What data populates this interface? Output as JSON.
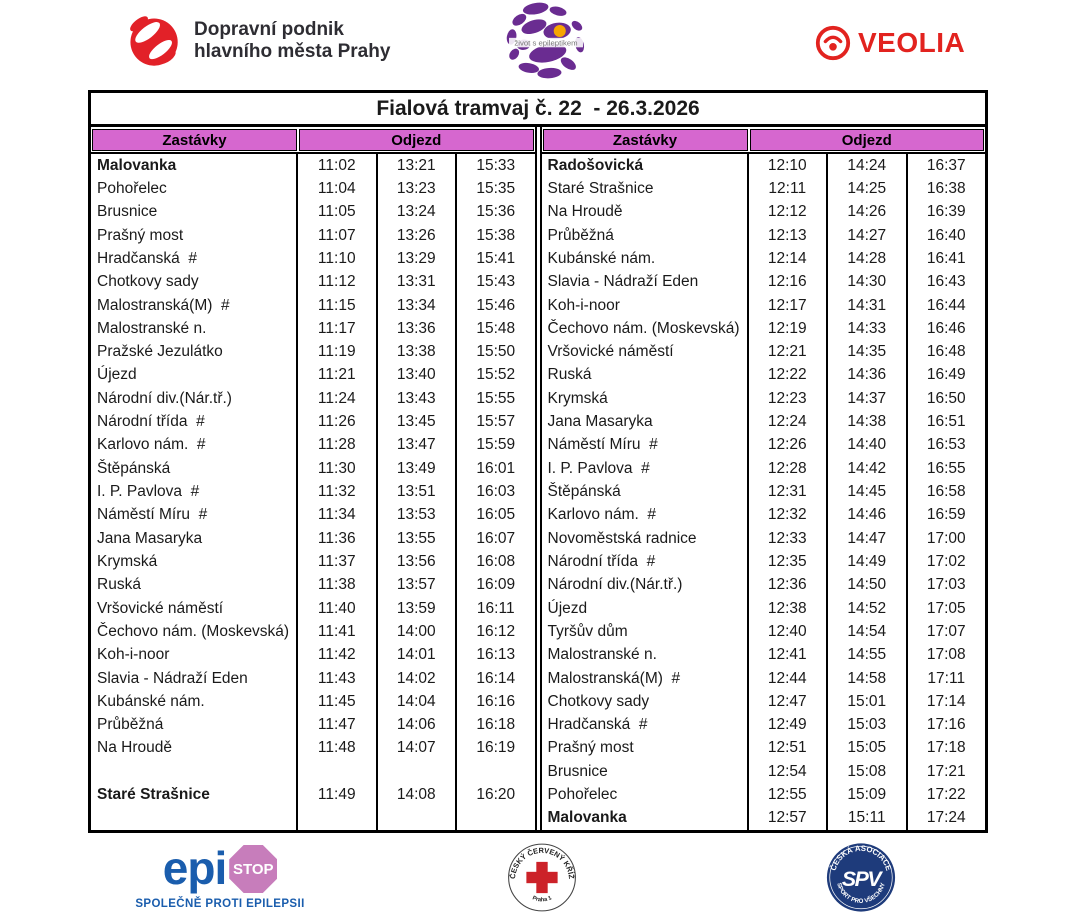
{
  "title": "Fialová tramvaj č. 22  - 26.3.2026",
  "columns": {
    "stops": "Zastávky",
    "departure": "Odjezd"
  },
  "colors": {
    "header_pink": "#D667CF",
    "dpp_red": "#E22128",
    "veolia_red": "#E2231F",
    "epistop_blue": "#1A5DAD",
    "epistop_pink": "#C77DBB",
    "redcross_red": "#CC2229",
    "spv_navy": "#1E3B7B",
    "epilepsy_purple": "#6A2C91",
    "epilepsy_orange": "#F7A600"
  },
  "tables": {
    "left": {
      "rows": [
        {
          "stop": "Malovanka",
          "bold": true,
          "times": [
            "11:02",
            "13:21",
            "15:33"
          ]
        },
        {
          "stop": "Pohořelec",
          "bold": false,
          "times": [
            "11:04",
            "13:23",
            "15:35"
          ]
        },
        {
          "stop": "Brusnice",
          "bold": false,
          "times": [
            "11:05",
            "13:24",
            "15:36"
          ]
        },
        {
          "stop": "Prašný most",
          "bold": false,
          "times": [
            "11:07",
            "13:26",
            "15:38"
          ]
        },
        {
          "stop": "Hradčanská  #",
          "bold": false,
          "times": [
            "11:10",
            "13:29",
            "15:41"
          ]
        },
        {
          "stop": "Chotkovy sady",
          "bold": false,
          "times": [
            "11:12",
            "13:31",
            "15:43"
          ]
        },
        {
          "stop": "Malostranská(M)  #",
          "bold": false,
          "times": [
            "11:15",
            "13:34",
            "15:46"
          ]
        },
        {
          "stop": "Malostranské n.",
          "bold": false,
          "times": [
            "11:17",
            "13:36",
            "15:48"
          ]
        },
        {
          "stop": "Pražské Jezulátko",
          "bold": false,
          "times": [
            "11:19",
            "13:38",
            "15:50"
          ]
        },
        {
          "stop": "Újezd",
          "bold": false,
          "times": [
            "11:21",
            "13:40",
            "15:52"
          ]
        },
        {
          "stop": "Národní div.(Nár.tř.)",
          "bold": false,
          "times": [
            "11:24",
            "13:43",
            "15:55"
          ]
        },
        {
          "stop": "Národní třída  #",
          "bold": false,
          "times": [
            "11:26",
            "13:45",
            "15:57"
          ]
        },
        {
          "stop": "Karlovo nám.  #",
          "bold": false,
          "times": [
            "11:28",
            "13:47",
            "15:59"
          ]
        },
        {
          "stop": "Štěpánská",
          "bold": false,
          "times": [
            "11:30",
            "13:49",
            "16:01"
          ]
        },
        {
          "stop": "I. P. Pavlova  #",
          "bold": false,
          "times": [
            "11:32",
            "13:51",
            "16:03"
          ]
        },
        {
          "stop": "Náměstí Míru  #",
          "bold": false,
          "times": [
            "11:34",
            "13:53",
            "16:05"
          ]
        },
        {
          "stop": "Jana Masaryka",
          "bold": false,
          "times": [
            "11:36",
            "13:55",
            "16:07"
          ]
        },
        {
          "stop": "Krymská",
          "bold": false,
          "times": [
            "11:37",
            "13:56",
            "16:08"
          ]
        },
        {
          "stop": "Ruská",
          "bold": false,
          "times": [
            "11:38",
            "13:57",
            "16:09"
          ]
        },
        {
          "stop": "Vršovické náměstí",
          "bold": false,
          "times": [
            "11:40",
            "13:59",
            "16:11"
          ]
        },
        {
          "stop": "Čechovo nám. (Moskevská)",
          "bold": false,
          "times": [
            "11:41",
            "14:00",
            "16:12"
          ]
        },
        {
          "stop": "Koh-i-noor",
          "bold": false,
          "times": [
            "11:42",
            "14:01",
            "16:13"
          ]
        },
        {
          "stop": "Slavia - Nádraží Eden",
          "bold": false,
          "times": [
            "11:43",
            "14:02",
            "16:14"
          ]
        },
        {
          "stop": "Kubánské nám.",
          "bold": false,
          "times": [
            "11:45",
            "14:04",
            "16:16"
          ]
        },
        {
          "stop": "Průběžná",
          "bold": false,
          "times": [
            "11:47",
            "14:06",
            "16:18"
          ]
        },
        {
          "stop": "Na Hroudě",
          "bold": false,
          "times": [
            "11:48",
            "14:07",
            "16:19"
          ]
        },
        {
          "stop": "",
          "bold": false,
          "times": [
            "",
            "",
            ""
          ]
        },
        {
          "stop": "Staré Strašnice",
          "bold": true,
          "times": [
            "11:49",
            "14:08",
            "16:20"
          ]
        },
        {
          "stop": "",
          "bold": false,
          "times": [
            "",
            "",
            ""
          ]
        }
      ]
    },
    "right": {
      "rows": [
        {
          "stop": "Radošovická",
          "bold": true,
          "times": [
            "12:10",
            "14:24",
            "16:37"
          ]
        },
        {
          "stop": "Staré Strašnice",
          "bold": false,
          "times": [
            "12:11",
            "14:25",
            "16:38"
          ]
        },
        {
          "stop": "Na Hroudě",
          "bold": false,
          "times": [
            "12:12",
            "14:26",
            "16:39"
          ]
        },
        {
          "stop": "Průběžná",
          "bold": false,
          "times": [
            "12:13",
            "14:27",
            "16:40"
          ]
        },
        {
          "stop": "Kubánské nám.",
          "bold": false,
          "times": [
            "12:14",
            "14:28",
            "16:41"
          ]
        },
        {
          "stop": "Slavia - Nádraží Eden",
          "bold": false,
          "times": [
            "12:16",
            "14:30",
            "16:43"
          ]
        },
        {
          "stop": "Koh-i-noor",
          "bold": false,
          "times": [
            "12:17",
            "14:31",
            "16:44"
          ]
        },
        {
          "stop": "Čechovo nám. (Moskevská)",
          "bold": false,
          "times": [
            "12:19",
            "14:33",
            "16:46"
          ]
        },
        {
          "stop": "Vršovické náměstí",
          "bold": false,
          "times": [
            "12:21",
            "14:35",
            "16:48"
          ]
        },
        {
          "stop": "Ruská",
          "bold": false,
          "times": [
            "12:22",
            "14:36",
            "16:49"
          ]
        },
        {
          "stop": "Krymská",
          "bold": false,
          "times": [
            "12:23",
            "14:37",
            "16:50"
          ]
        },
        {
          "stop": "Jana Masaryka",
          "bold": false,
          "times": [
            "12:24",
            "14:38",
            "16:51"
          ]
        },
        {
          "stop": "Náměstí Míru  #",
          "bold": false,
          "times": [
            "12:26",
            "14:40",
            "16:53"
          ]
        },
        {
          "stop": "I. P. Pavlova  #",
          "bold": false,
          "times": [
            "12:28",
            "14:42",
            "16:55"
          ]
        },
        {
          "stop": "Štěpánská",
          "bold": false,
          "times": [
            "12:31",
            "14:45",
            "16:58"
          ]
        },
        {
          "stop": "Karlovo nám.  #",
          "bold": false,
          "times": [
            "12:32",
            "14:46",
            "16:59"
          ]
        },
        {
          "stop": "Novoměstská radnice",
          "bold": false,
          "times": [
            "12:33",
            "14:47",
            "17:00"
          ]
        },
        {
          "stop": "Národní třída  #",
          "bold": false,
          "times": [
            "12:35",
            "14:49",
            "17:02"
          ]
        },
        {
          "stop": "Národní div.(Nár.tř.)",
          "bold": false,
          "times": [
            "12:36",
            "14:50",
            "17:03"
          ]
        },
        {
          "stop": "Újezd",
          "bold": false,
          "times": [
            "12:38",
            "14:52",
            "17:05"
          ]
        },
        {
          "stop": "Tyršův dům",
          "bold": false,
          "times": [
            "12:40",
            "14:54",
            "17:07"
          ]
        },
        {
          "stop": "Malostranské n.",
          "bold": false,
          "times": [
            "12:41",
            "14:55",
            "17:08"
          ]
        },
        {
          "stop": "Malostranská(M)  #",
          "bold": false,
          "times": [
            "12:44",
            "14:58",
            "17:11"
          ]
        },
        {
          "stop": "Chotkovy sady",
          "bold": false,
          "times": [
            "12:47",
            "15:01",
            "17:14"
          ]
        },
        {
          "stop": "Hradčanská  #",
          "bold": false,
          "times": [
            "12:49",
            "15:03",
            "17:16"
          ]
        },
        {
          "stop": "Prašný most",
          "bold": false,
          "times": [
            "12:51",
            "15:05",
            "17:18"
          ]
        },
        {
          "stop": "Brusnice",
          "bold": false,
          "times": [
            "12:54",
            "15:08",
            "17:21"
          ]
        },
        {
          "stop": "Pohořelec",
          "bold": false,
          "times": [
            "12:55",
            "15:09",
            "17:22"
          ]
        },
        {
          "stop": "Malovanka",
          "bold": true,
          "times": [
            "12:57",
            "15:11",
            "17:24"
          ]
        }
      ]
    }
  },
  "top_logos": {
    "dpp": {
      "line1": "Dopravní podnik",
      "line2": "hlavního města Prahy"
    },
    "epilepsy": {
      "label": "život s epileptikem"
    },
    "veolia": {
      "label": "VEOLIA"
    }
  },
  "bottom_logos": {
    "epistop": {
      "prefix": "epi",
      "stop_text": "STOP",
      "tagline": "SPOLEČNĚ PROTI EPILEPSII"
    },
    "red_cross": {
      "ring_text": "ČESKÝ ČERVENÝ KŘÍŽ",
      "bottom_text": "Praha 1"
    },
    "spv": {
      "top_text": "ČESKÁ ASOCIACE",
      "middle_text": "SPV",
      "bottom_text": "SPORT PRO VŠECHNY"
    }
  }
}
